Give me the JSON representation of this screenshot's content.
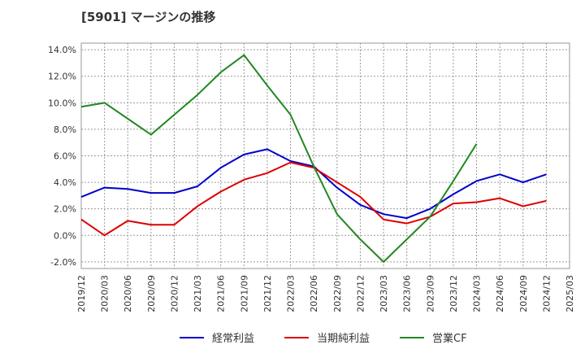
{
  "chart_data": {
    "type": "line",
    "title": "[5901]  マージンの推移",
    "x": [
      "2019/12",
      "2020/03",
      "2020/06",
      "2020/09",
      "2020/12",
      "2021/03",
      "2021/06",
      "2021/09",
      "2021/12",
      "2022/03",
      "2022/06",
      "2022/09",
      "2022/12",
      "2023/03",
      "2023/06",
      "2023/09",
      "2023/12",
      "2024/03",
      "2024/06",
      "2024/09",
      "2024/12",
      "2025/03"
    ],
    "yticks": [
      "14.0%",
      "12.0%",
      "10.0%",
      "8.0%",
      "6.0%",
      "4.0%",
      "2.0%",
      "0.0%",
      "-2.0%"
    ],
    "ylim": [
      -2.5,
      14.5
    ],
    "grid": true,
    "legend_position": "bottom",
    "series": [
      {
        "name": "経常利益",
        "color": "#0000cc",
        "values": [
          2.9,
          3.6,
          3.5,
          3.2,
          3.2,
          3.7,
          5.1,
          6.1,
          6.5,
          5.6,
          5.2,
          3.6,
          2.3,
          1.6,
          1.3,
          2.0,
          3.1,
          4.1,
          4.6,
          4.0,
          4.6,
          null
        ]
      },
      {
        "name": "当期純利益",
        "color": "#dd0000",
        "values": [
          1.2,
          0.0,
          1.1,
          0.8,
          0.8,
          2.2,
          3.3,
          4.2,
          4.7,
          5.5,
          5.1,
          4.0,
          2.9,
          1.2,
          0.9,
          1.4,
          2.4,
          2.5,
          2.8,
          2.2,
          2.6,
          null
        ]
      },
      {
        "name": "営業CF",
        "color": "#228822",
        "values": [
          9.7,
          10.0,
          8.8,
          7.6,
          9.1,
          10.6,
          12.3,
          13.6,
          11.3,
          9.1,
          5.2,
          1.6,
          -0.3,
          -2.0,
          -0.3,
          1.4,
          4.1,
          6.9,
          null,
          null,
          null,
          null
        ]
      }
    ]
  }
}
